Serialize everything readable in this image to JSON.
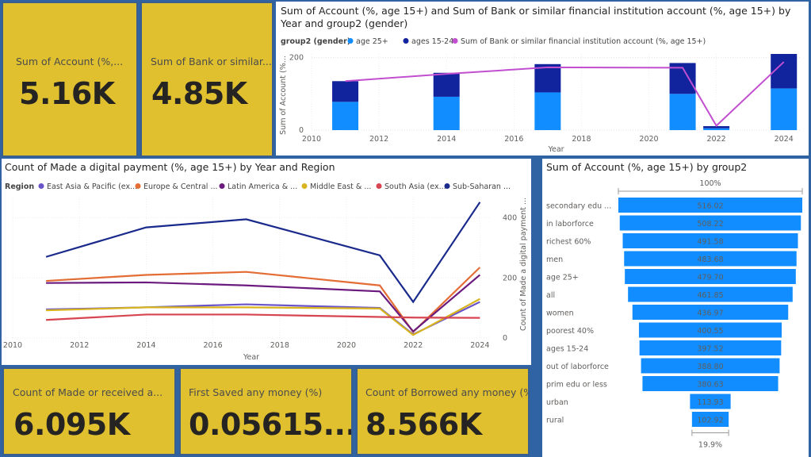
{
  "kpi": {
    "account": {
      "label": "Sum of Account (%,...",
      "value": "5.16K"
    },
    "bank": {
      "label": "Sum of Bank or similar...",
      "value": "4.85K"
    },
    "made_received": {
      "label": "Count of Made or received a...",
      "value": "6.095K"
    },
    "saved": {
      "label": "First Saved any money (%)",
      "value": "0.05615..."
    },
    "borrowed": {
      "label": "Count of Borrowed any money (%)",
      "value": "8.566K"
    }
  },
  "colors": {
    "light_blue": "#118dff",
    "dark_blue": "#12239e",
    "purple_line": "#c14fd0",
    "card_yellow": "#e0c02e"
  },
  "chart_data": [
    {
      "type": "bar",
      "title": "Sum of Account (%, age 15+) and Sum of Bank or similar financial institution account (%, age 15+) by Year and group2 (gender)",
      "legend_title": "group2 (gender)",
      "legend": [
        "age 25+",
        "ages 15-24",
        "Sum of Bank or similar financial institution account (%, age 15+)"
      ],
      "xlabel": "Year",
      "ylabel": "Sum of Account (%...",
      "x_ticks": [
        "2010",
        "2012",
        "2014",
        "2016",
        "2018",
        "2020",
        "2022",
        "2024"
      ],
      "y_ticks": [
        "0",
        "200"
      ],
      "x": [
        2011,
        2014,
        2017,
        2021,
        2022,
        2024
      ],
      "xlim": [
        2010,
        2024.5
      ],
      "ylim": [
        0,
        210
      ],
      "series": [
        {
          "name": "age 25+",
          "kind": "bar",
          "color": "#118dff",
          "values": [
            78,
            92,
            104,
            100,
            5,
            115
          ]
        },
        {
          "name": "ages 15-24",
          "kind": "bar",
          "color": "#12239e",
          "values": [
            57,
            66,
            78,
            85,
            6,
            95
          ]
        },
        {
          "name": "Sum of Bank or similar financial institution account (%, age 15+)",
          "kind": "line",
          "color": "#c14fd0",
          "values": [
            135,
            155,
            173,
            172,
            12,
            188
          ]
        }
      ]
    },
    {
      "type": "line",
      "title": "Count of Made a digital payment (%, age 15+) by Year and Region",
      "legend_title": "Region",
      "legend": [
        "East Asia & Pacific (ex...",
        "Europe & Central ...",
        "Latin America & ...",
        "Middle East & ...",
        "South Asia (ex...",
        "Sub-Saharan ..."
      ],
      "xlabel": "Year",
      "ylabel": "Count of Made a digital payment ...",
      "x_ticks": [
        "2010",
        "2012",
        "2014",
        "2016",
        "2018",
        "2020",
        "2022",
        "2024"
      ],
      "y_ticks": [
        "0",
        "200",
        "400"
      ],
      "x": [
        2011,
        2014,
        2017,
        2021,
        2022,
        2024
      ],
      "xlim": [
        2010,
        2024.3
      ],
      "ylim": [
        0,
        470
      ],
      "series": [
        {
          "name": "East Asia & Pacific (ex...",
          "color": "#6b54c9",
          "values": [
            95,
            102,
            112,
            100,
            12,
            120
          ]
        },
        {
          "name": "Europe & Central ...",
          "color": "#e36d35",
          "values": [
            190,
            210,
            220,
            175,
            20,
            235
          ]
        },
        {
          "name": "Latin America & ...",
          "color": "#6b1a7e",
          "values": [
            183,
            185,
            175,
            155,
            22,
            210
          ]
        },
        {
          "name": "Middle East & ...",
          "color": "#d8b41e",
          "values": [
            92,
            102,
            102,
            98,
            10,
            130
          ]
        },
        {
          "name": "South Asia (ex...",
          "color": "#d64550",
          "values": [
            60,
            78,
            78,
            70,
            68,
            67
          ]
        },
        {
          "name": "Sub-Saharan ...",
          "color": "#1a2a8c",
          "values": [
            270,
            368,
            395,
            275,
            120,
            452
          ]
        }
      ]
    },
    {
      "type": "bar",
      "subtype": "funnel",
      "title": "Sum of Account (%, age 15+) by group2",
      "top_percent": "100%",
      "bottom_percent": "19.9%",
      "color": "#118dff",
      "categories": [
        "secondary edu ...",
        "in laborforce",
        "richest 60%",
        "men",
        "age 25+",
        "all",
        "women",
        "poorest 40%",
        "ages 15-24",
        "out of laborforce",
        "prim edu or less",
        "urban",
        "rural"
      ],
      "values": [
        516.02,
        508.22,
        491.58,
        483.68,
        479.7,
        461.85,
        436.97,
        400.55,
        397.52,
        388.8,
        380.63,
        113.93,
        102.92
      ],
      "labels": [
        "516.02",
        "508.22",
        "491.58",
        "483.68",
        "479.70",
        "461.85",
        "436.97",
        "400.55",
        "397.52",
        "388.80",
        "380.63",
        "113.93",
        "102.92"
      ]
    }
  ]
}
